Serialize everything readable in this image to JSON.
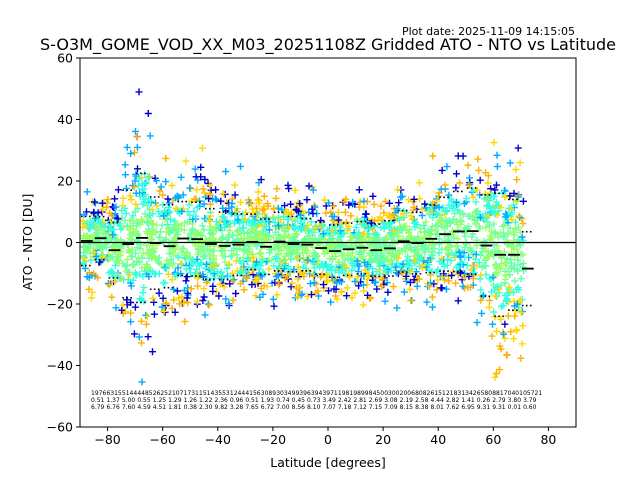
{
  "chart_data": {
    "type": "scatter",
    "title": "S-O3M_GOME_VOD_XX_M03_20251108Z Gridded ATO - NTO vs Latitude",
    "subtitle": "Plot date: 2025-11-09 14:15:05",
    "xlabel": "Latitude [degrees]",
    "ylabel": "ATO - NTO [DU]",
    "xlim": [
      -90,
      90
    ],
    "ylim": [
      -60,
      60
    ],
    "xticks": [
      -80,
      -60,
      -40,
      -20,
      0,
      20,
      40,
      60,
      80
    ],
    "xtick_labels": [
      "−80",
      "−60",
      "−40",
      "−20",
      "0",
      "20",
      "40",
      "60",
      "80"
    ],
    "yticks": [
      -60,
      -40,
      -20,
      0,
      20,
      40,
      60
    ],
    "ytick_labels": [
      "−60",
      "−40",
      "−20",
      "0",
      "20",
      "40",
      "60"
    ],
    "zero_line": 0,
    "marker": "+",
    "point_colors": [
      "#0000cd",
      "#00aaff",
      "#33ffe0",
      "#66ffaa",
      "#99ff66",
      "#ffd700",
      "#ffb000"
    ],
    "bin_centers": [
      -87.5,
      -82.5,
      -77.5,
      -72.5,
      -67.5,
      -62.5,
      -57.5,
      -52.5,
      -47.5,
      -42.5,
      -37.5,
      -32.5,
      -27.5,
      -22.5,
      -17.5,
      -12.5,
      -7.5,
      -2.5,
      2.5,
      7.5,
      12.5,
      17.5,
      22.5,
      27.5,
      32.5,
      37.5,
      42.5,
      47.5,
      52.5,
      57.5,
      62.5,
      67.5,
      72.5
    ],
    "bin_mean": [
      0.5,
      1.4,
      -2.5,
      -0.5,
      1.5,
      -0.2,
      -1.2,
      1.3,
      1.1,
      -0.5,
      -1.1,
      -0.7,
      0.2,
      -1.4,
      0.3,
      -0.5,
      -0.7,
      -1.8,
      -2.8,
      -2.2,
      -1.7,
      -2.5,
      -1.9,
      0.4,
      -0.2,
      1.2,
      2.7,
      3.6,
      3.7,
      -1.0,
      -4.0,
      -4.0,
      -8.5
    ],
    "bin_std": [
      8.0,
      7.0,
      9.0,
      17.5,
      21.0,
      15.0,
      13.5,
      12.0,
      12.0,
      11.5,
      11.0,
      10.0,
      9.0,
      9.0,
      9.5,
      9.0,
      8.5,
      8.5,
      8.5,
      8.5,
      8.5,
      8.5,
      9.0,
      10.0,
      10.0,
      11.0,
      12.0,
      13.0,
      14.0,
      16.5,
      20.0,
      18.0,
      12.0
    ],
    "stats_rows": [
      [
        "1976",
        "6315",
        "5144",
        "4485",
        "2625",
        "2107",
        "1731",
        "1514",
        "3553",
        "1244",
        "4156",
        "3089",
        "3034",
        "9939",
        "6394",
        "3971",
        "1981",
        "9899",
        "8450",
        "0300",
        "2006",
        "8082",
        "6151",
        "2183",
        "1342",
        "6580",
        "8817",
        "0401",
        "05721"
      ],
      [
        "0.51",
        "1.37",
        "5.00",
        "0.55",
        "1.25",
        "1.29",
        "1.26",
        "1.22",
        "2.36",
        "0.96",
        "0.51",
        "1.93",
        "0.74",
        "0.45",
        "0.73",
        "3.49",
        "2.42",
        "2.81",
        "2.69",
        "3.08",
        "2.19",
        "2.58",
        "4.44",
        "2.82",
        "1.41",
        "0.26",
        "2.79",
        "3.80",
        "3.79"
      ],
      [
        "6.79",
        "6.76",
        "7.60",
        "4.59",
        "4.51",
        "1.81",
        "0.38",
        "2.30",
        "9.82",
        "3.28",
        "7.65",
        "6.72",
        "7.00",
        "8.56",
        "8.10",
        "7.07",
        "7.18",
        "7.12",
        "7.15",
        "7.09",
        "8.15",
        "8.38",
        "8.01",
        "7.62",
        "6.95",
        "9.31",
        "9.31",
        "0.01",
        "0.60"
      ]
    ]
  }
}
